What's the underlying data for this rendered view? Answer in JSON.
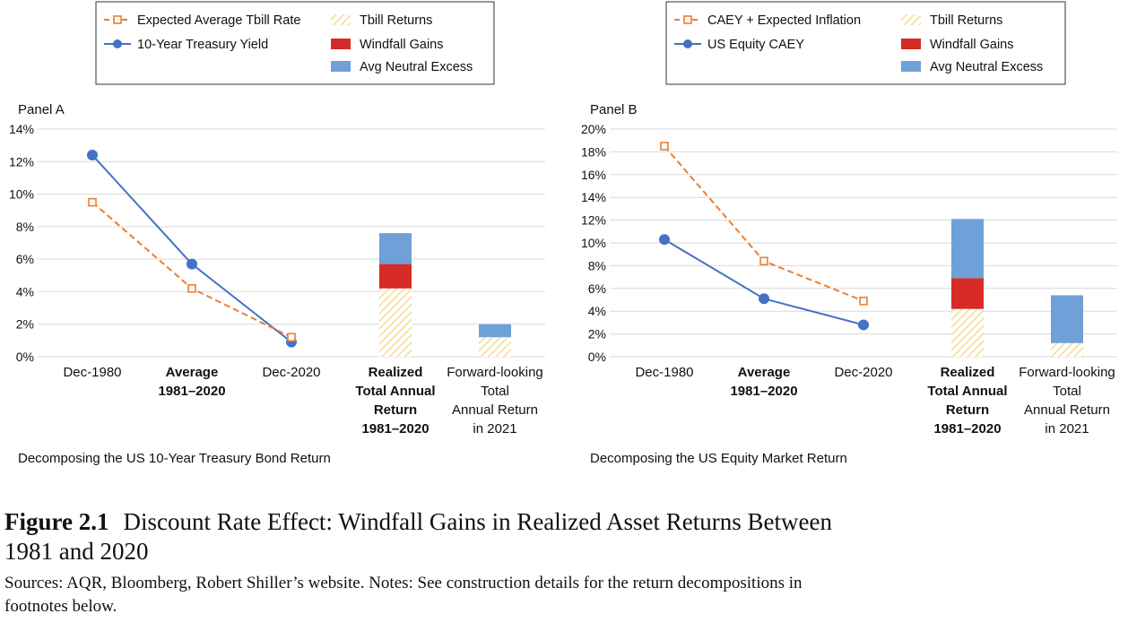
{
  "figure": {
    "number": "Figure 2.1",
    "title": "Discount Rate Effect: Windfall Gains in Realized Asset Returns Between 1981 and 2020",
    "title_line1": "Discount Rate Effect: Windfall Gains in Realized Asset Returns Between",
    "title_line2": "1981 and 2020",
    "sources_line1": "Sources: AQR, Bloomberg, Robert Shiller’s website. Notes: See construction details for the return decompositions in",
    "sources_line2": "footnotes below."
  },
  "colors": {
    "blue_line": "#4472c4",
    "orange_line": "#ed7d31",
    "tbill_hatch": "#f2cf6b",
    "windfall": "#d62b26",
    "neutral_excess": "#6fa0d8",
    "grid": "#d9d9d9"
  },
  "chart_data": [
    {
      "type": "line+stacked-bar",
      "panel_label": "Panel A",
      "subtitle": "Decomposing the US 10-Year Treasury Bond Return",
      "categories": [
        [
          "Dec-1980"
        ],
        [
          "Average",
          "1981–2020"
        ],
        [
          "Dec-2020"
        ],
        [
          "Realized",
          "Total Annual",
          "Return",
          "1981–2020"
        ],
        [
          "Forward-looking",
          "Total",
          "Annual Return",
          "in 2021"
        ]
      ],
      "y_ticks": [
        "0%",
        "2%",
        "4%",
        "6%",
        "8%",
        "10%",
        "12%",
        "14%"
      ],
      "ylim": [
        0,
        14
      ],
      "y_step": 2,
      "grid": true,
      "legend_placement": "top",
      "legend": {
        "dashed_line": "Expected Average Tbill Rate",
        "solid_line": "10-Year Treasury Yield",
        "hatch_bar": "Tbill Returns",
        "red_bar": "Windfall Gains",
        "blue_bar": "Avg Neutral Excess"
      },
      "line_series": [
        {
          "name": "10-Year Treasury Yield",
          "style": "solid-circle",
          "values": [
            12.4,
            5.7,
            0.9
          ]
        },
        {
          "name": "Expected Average Tbill Rate",
          "style": "dashed-square",
          "values": [
            9.5,
            4.2,
            1.2
          ]
        }
      ],
      "bars": [
        {
          "category_index": 3,
          "tbill": 4.2,
          "windfall": 1.5,
          "neutral_excess": 1.9
        },
        {
          "category_index": 4,
          "tbill": 1.2,
          "windfall": 0.0,
          "neutral_excess": 0.8
        }
      ]
    },
    {
      "type": "line+stacked-bar",
      "panel_label": "Panel B",
      "subtitle": "Decomposing the US Equity Market Return",
      "categories": [
        [
          "Dec-1980"
        ],
        [
          "Average",
          "1981–2020"
        ],
        [
          "Dec-2020"
        ],
        [
          "Realized",
          "Total Annual",
          "Return",
          "1981–2020"
        ],
        [
          "Forward-looking",
          "Total",
          "Annual Return",
          "in 2021"
        ]
      ],
      "y_ticks": [
        "0%",
        "2%",
        "4%",
        "6%",
        "8%",
        "10%",
        "12%",
        "14%",
        "16%",
        "18%",
        "20%"
      ],
      "ylim": [
        0,
        20
      ],
      "y_step": 2,
      "grid": true,
      "legend_placement": "top",
      "legend": {
        "dashed_line": "CAEY + Expected Inflation",
        "solid_line": "US Equity CAEY",
        "hatch_bar": "Tbill Returns",
        "red_bar": "Windfall Gains",
        "blue_bar": "Avg Neutral Excess"
      },
      "line_series": [
        {
          "name": "US Equity CAEY",
          "style": "solid-circle",
          "values": [
            10.3,
            5.1,
            2.8
          ]
        },
        {
          "name": "CAEY + Expected Inflation",
          "style": "dashed-square",
          "values": [
            18.5,
            8.4,
            4.9
          ]
        }
      ],
      "bars": [
        {
          "category_index": 3,
          "tbill": 4.2,
          "windfall": 2.7,
          "neutral_excess": 5.2
        },
        {
          "category_index": 4,
          "tbill": 1.2,
          "windfall": 0.0,
          "neutral_excess": 4.2
        }
      ]
    }
  ]
}
